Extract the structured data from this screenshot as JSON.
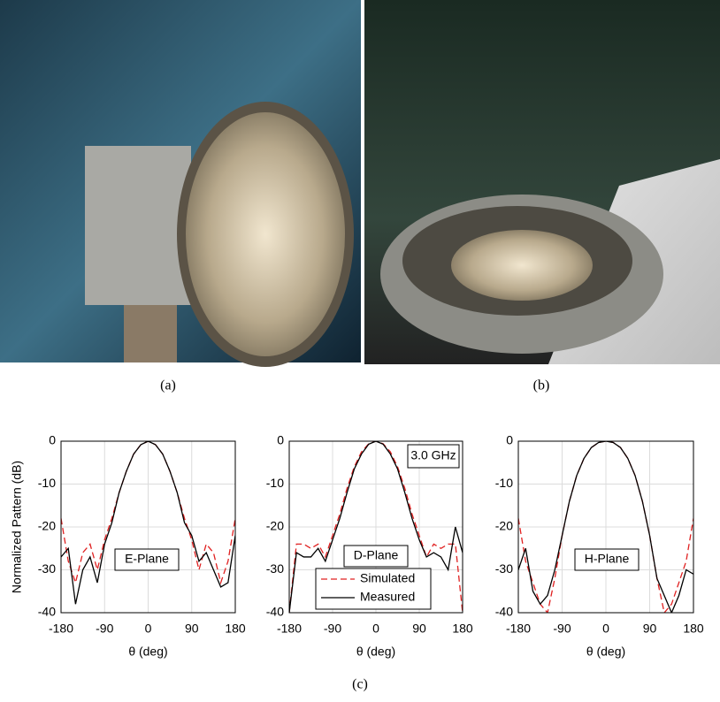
{
  "captions": [
    "(a)",
    "(b)",
    "(c)"
  ],
  "chart_data": [
    {
      "type": "line",
      "ylabel": "Normalized Pattern (dB)",
      "xlabel": "θ (deg)",
      "annotation": "E-Plane",
      "x": [
        -180,
        -165,
        -150,
        -135,
        -120,
        -105,
        -90,
        -75,
        -60,
        -45,
        -30,
        -15,
        0,
        15,
        30,
        45,
        60,
        75,
        90,
        105,
        120,
        135,
        150,
        165,
        180
      ],
      "xlim": [
        -180,
        180
      ],
      "xticks": [
        -180,
        -90,
        0,
        90,
        180
      ],
      "ylim": [
        -40,
        0
      ],
      "yticks": [
        0,
        -10,
        -20,
        -30,
        -40
      ],
      "grid": true,
      "series": [
        {
          "color": "#e02020",
          "dash": true,
          "values": [
            -18,
            -28,
            -33,
            -26,
            -24,
            -30,
            -23,
            -18,
            -12,
            -7,
            -3,
            -0.8,
            0,
            -0.8,
            -3,
            -7,
            -12,
            -18,
            -23,
            -30,
            -24,
            -26,
            -33,
            -28,
            -18
          ]
        },
        {
          "color": "#000000",
          "dash": false,
          "values": [
            -27,
            -25,
            -38,
            -30,
            -27,
            -33,
            -24,
            -19,
            -12,
            -7,
            -3,
            -0.8,
            0,
            -0.8,
            -3,
            -7,
            -12,
            -19,
            -22,
            -28,
            -26,
            -30,
            -34,
            -33,
            -22
          ]
        }
      ]
    },
    {
      "type": "line",
      "xlabel": "θ (deg)",
      "annotation": "D-Plane",
      "frequency": "3.0 GHz",
      "legend": "lower left",
      "x": [
        -180,
        -165,
        -150,
        -135,
        -120,
        -105,
        -90,
        -75,
        -60,
        -45,
        -30,
        -15,
        0,
        15,
        30,
        45,
        60,
        75,
        90,
        105,
        120,
        135,
        150,
        165,
        180
      ],
      "xlim": [
        -180,
        180
      ],
      "xticks": [
        -180,
        -90,
        0,
        90,
        180
      ],
      "ylim": [
        -40,
        0
      ],
      "yticks": [
        0,
        -10,
        -20,
        -30,
        -40
      ],
      "grid": true,
      "series": [
        {
          "name": "Simulated",
          "color": "#e02020",
          "dash": true,
          "values": [
            -40,
            -24,
            -24,
            -25,
            -24,
            -27,
            -22,
            -17,
            -11,
            -6,
            -2.5,
            -0.6,
            0,
            -0.6,
            -2.5,
            -6,
            -11,
            -17,
            -22,
            -27,
            -24,
            -25,
            -24,
            -24,
            -40
          ]
        },
        {
          "name": "Measured",
          "color": "#000000",
          "dash": false,
          "values": [
            -40,
            -26,
            -27,
            -27,
            -25,
            -28,
            -23,
            -18,
            -12,
            -6.5,
            -3,
            -0.7,
            0,
            -0.7,
            -3,
            -6.5,
            -12,
            -18,
            -23,
            -27,
            -26,
            -27,
            -30,
            -20,
            -26
          ]
        }
      ]
    },
    {
      "type": "line",
      "xlabel": "θ (deg)",
      "annotation": "H-Plane",
      "x": [
        -180,
        -165,
        -150,
        -135,
        -120,
        -105,
        -90,
        -75,
        -60,
        -45,
        -30,
        -15,
        0,
        15,
        30,
        45,
        60,
        75,
        90,
        105,
        120,
        135,
        150,
        165,
        180
      ],
      "xlim": [
        -180,
        180
      ],
      "xticks": [
        -180,
        -90,
        0,
        90,
        180
      ],
      "ylim": [
        -40,
        0
      ],
      "yticks": [
        0,
        -10,
        -20,
        -30,
        -40
      ],
      "grid": true,
      "series": [
        {
          "color": "#e02020",
          "dash": true,
          "values": [
            -18,
            -28,
            -33,
            -38,
            -40,
            -32,
            -22,
            -14,
            -8,
            -4,
            -1.5,
            -0.3,
            0,
            -0.3,
            -1.5,
            -4,
            -8,
            -14,
            -22,
            -32,
            -40,
            -38,
            -33,
            -28,
            -18
          ]
        },
        {
          "color": "#000000",
          "dash": false,
          "values": [
            -30,
            -25,
            -35,
            -38,
            -36,
            -30,
            -22,
            -14,
            -8,
            -4,
            -1.5,
            -0.3,
            0,
            -0.3,
            -1.5,
            -4,
            -8,
            -14,
            -22,
            -32,
            -36,
            -40,
            -36,
            -30,
            -31
          ]
        }
      ]
    }
  ]
}
